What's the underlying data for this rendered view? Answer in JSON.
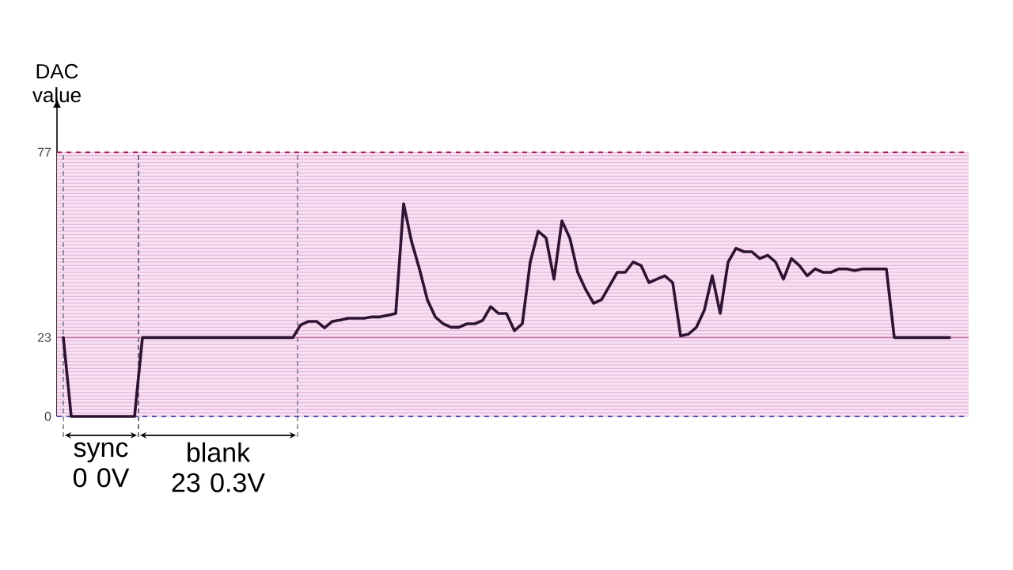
{
  "chart_data": {
    "type": "line",
    "ylabel": "DAC value",
    "categories": [
      null,
      null,
      null,
      null,
      null,
      null,
      null,
      null,
      null,
      null,
      null,
      null,
      null,
      null,
      null,
      null,
      null,
      null,
      null,
      null,
      null,
      null,
      null,
      null,
      null,
      null,
      null,
      null,
      null,
      null,
      null,
      null,
      null,
      null,
      null,
      null,
      null,
      null,
      null,
      null,
      null,
      null,
      null,
      null,
      null,
      null,
      null,
      null,
      null,
      null,
      null,
      null,
      null,
      null,
      null,
      null,
      null,
      null,
      null,
      null,
      null,
      null,
      null,
      null,
      null,
      null,
      null,
      null,
      null,
      null,
      null,
      null,
      null,
      null,
      null,
      null,
      null,
      null,
      null,
      null,
      null,
      null,
      null,
      null,
      null,
      null,
      null,
      null,
      null,
      null,
      null,
      null,
      null,
      null,
      null,
      null,
      null,
      null,
      null,
      null,
      null,
      null,
      null,
      null,
      null,
      null,
      null,
      null,
      null,
      null,
      null,
      null,
      null
    ],
    "series": [
      {
        "color": "#2e1432",
        "values": [
          23,
          0,
          0,
          0,
          0,
          0,
          0,
          0,
          0,
          0,
          23,
          23,
          23,
          23,
          23,
          23,
          23,
          23,
          23,
          23,
          23,
          23,
          23,
          23,
          23,
          23,
          23,
          23,
          23,
          23,
          26.7,
          27.7,
          27.7,
          25.8,
          27.7,
          28.1,
          28.6,
          28.6,
          28.6,
          29,
          29,
          29.5,
          30,
          62,
          51,
          43,
          34,
          29,
          27,
          26,
          26,
          27,
          27,
          28,
          32,
          30,
          30,
          25,
          27,
          45,
          54,
          52,
          40,
          57,
          52,
          42,
          37,
          33,
          34,
          38,
          42,
          42,
          45,
          44,
          39,
          40,
          41,
          39,
          23.5,
          24,
          26,
          31,
          41,
          30,
          45,
          49,
          48,
          48,
          46,
          47,
          45,
          40,
          46,
          44,
          41,
          43,
          42,
          42,
          43,
          43,
          42.5,
          43,
          43,
          43,
          43,
          23,
          23,
          23,
          23,
          23,
          23,
          23,
          23
        ]
      }
    ],
    "ylim": [
      0,
      90
    ],
    "yticks": [
      0,
      {
        "value": 1,
        "label": null
      },
      {
        "value": 2,
        "label": null
      },
      {
        "value": 3,
        "label": null
      },
      {
        "value": 4,
        "label": null
      },
      {
        "value": 5,
        "label": null
      },
      {
        "value": 6,
        "label": null
      },
      {
        "value": 7,
        "label": null
      },
      {
        "value": 8,
        "label": null
      },
      {
        "value": 9,
        "label": null
      },
      {
        "value": 10,
        "label": null
      },
      {
        "value": 11,
        "label": null
      },
      {
        "value": 12,
        "label": null
      },
      {
        "value": 13,
        "label": null
      },
      {
        "value": 14,
        "label": null
      },
      {
        "value": 15,
        "label": null
      },
      {
        "value": 16,
        "label": null
      },
      {
        "value": 17,
        "label": null
      },
      {
        "value": 18,
        "label": null
      },
      {
        "value": 19,
        "label": null
      },
      {
        "value": 20,
        "label": null
      },
      {
        "value": 21,
        "label": null
      },
      {
        "value": 22,
        "label": null
      },
      23,
      {
        "value": 24,
        "label": null
      },
      {
        "value": 25,
        "label": null
      },
      {
        "value": 26,
        "label": null
      },
      {
        "value": 27,
        "label": null
      },
      {
        "value": 28,
        "label": null
      },
      {
        "value": 29,
        "label": null
      },
      {
        "value": 30,
        "label": null
      },
      {
        "value": 31,
        "label": null
      },
      {
        "value": 32,
        "label": null
      },
      {
        "value": 33,
        "label": null
      },
      {
        "value": 34,
        "label": null
      },
      {
        "value": 35,
        "label": null
      },
      {
        "value": 36,
        "label": null
      },
      {
        "value": 37,
        "label": null
      },
      {
        "value": 38,
        "label": null
      },
      {
        "value": 39,
        "label": null
      },
      {
        "value": 40,
        "label": null
      },
      {
        "value": 41,
        "label": null
      },
      {
        "value": 42,
        "label": null
      },
      {
        "value": 43,
        "label": null
      },
      {
        "value": 44,
        "label": null
      },
      {
        "value": 45,
        "label": null
      },
      {
        "value": 46,
        "label": null
      },
      {
        "value": 47,
        "label": null
      },
      {
        "value": 48,
        "label": null
      },
      {
        "value": 49,
        "label": null
      },
      {
        "value": 50,
        "label": null
      },
      {
        "value": 51,
        "label": null
      },
      {
        "value": 52,
        "label": null
      },
      {
        "value": 53,
        "label": null
      },
      {
        "value": 54,
        "label": null
      },
      {
        "value": 55,
        "label": null
      },
      {
        "value": 56,
        "label": null
      },
      {
        "value": 57,
        "label": null
      },
      {
        "value": 58,
        "label": null
      },
      {
        "value": 59,
        "label": null
      },
      {
        "value": 60,
        "label": null
      },
      {
        "value": 61,
        "label": null
      },
      {
        "value": 62,
        "label": null
      },
      {
        "value": 63,
        "label": null
      },
      {
        "value": 64,
        "label": null
      },
      {
        "value": 65,
        "label": null
      },
      {
        "value": 66,
        "label": null
      },
      {
        "value": 67,
        "label": null
      },
      {
        "value": 68,
        "label": null
      },
      {
        "value": 69,
        "label": null
      },
      {
        "value": 70,
        "label": null
      },
      {
        "value": 71,
        "label": null
      },
      {
        "value": 72,
        "label": null
      },
      {
        "value": 73,
        "label": null
      },
      {
        "value": 74,
        "label": null
      },
      {
        "value": 75,
        "label": null
      },
      {
        "value": 76,
        "label": null
      },
      77
    ],
    "grid": "y",
    "ref_lines": [
      {
        "axis": "y",
        "value": 77,
        "color": "#a01040",
        "line_style": "dashed"
      },
      {
        "axis": "y",
        "value": 23,
        "color": "#c878aa",
        "line_style": "solid"
      },
      {
        "axis": "y",
        "value": 0,
        "color": "#2828a0",
        "line_style": "dashed"
      }
    ],
    "bands": [
      {
        "axis": "y",
        "from": 0,
        "to": 77,
        "color": "#f7e2f3"
      }
    ],
    "annotations": [
      "sync 0 0V",
      "blank 23 0.3V"
    ]
  }
}
